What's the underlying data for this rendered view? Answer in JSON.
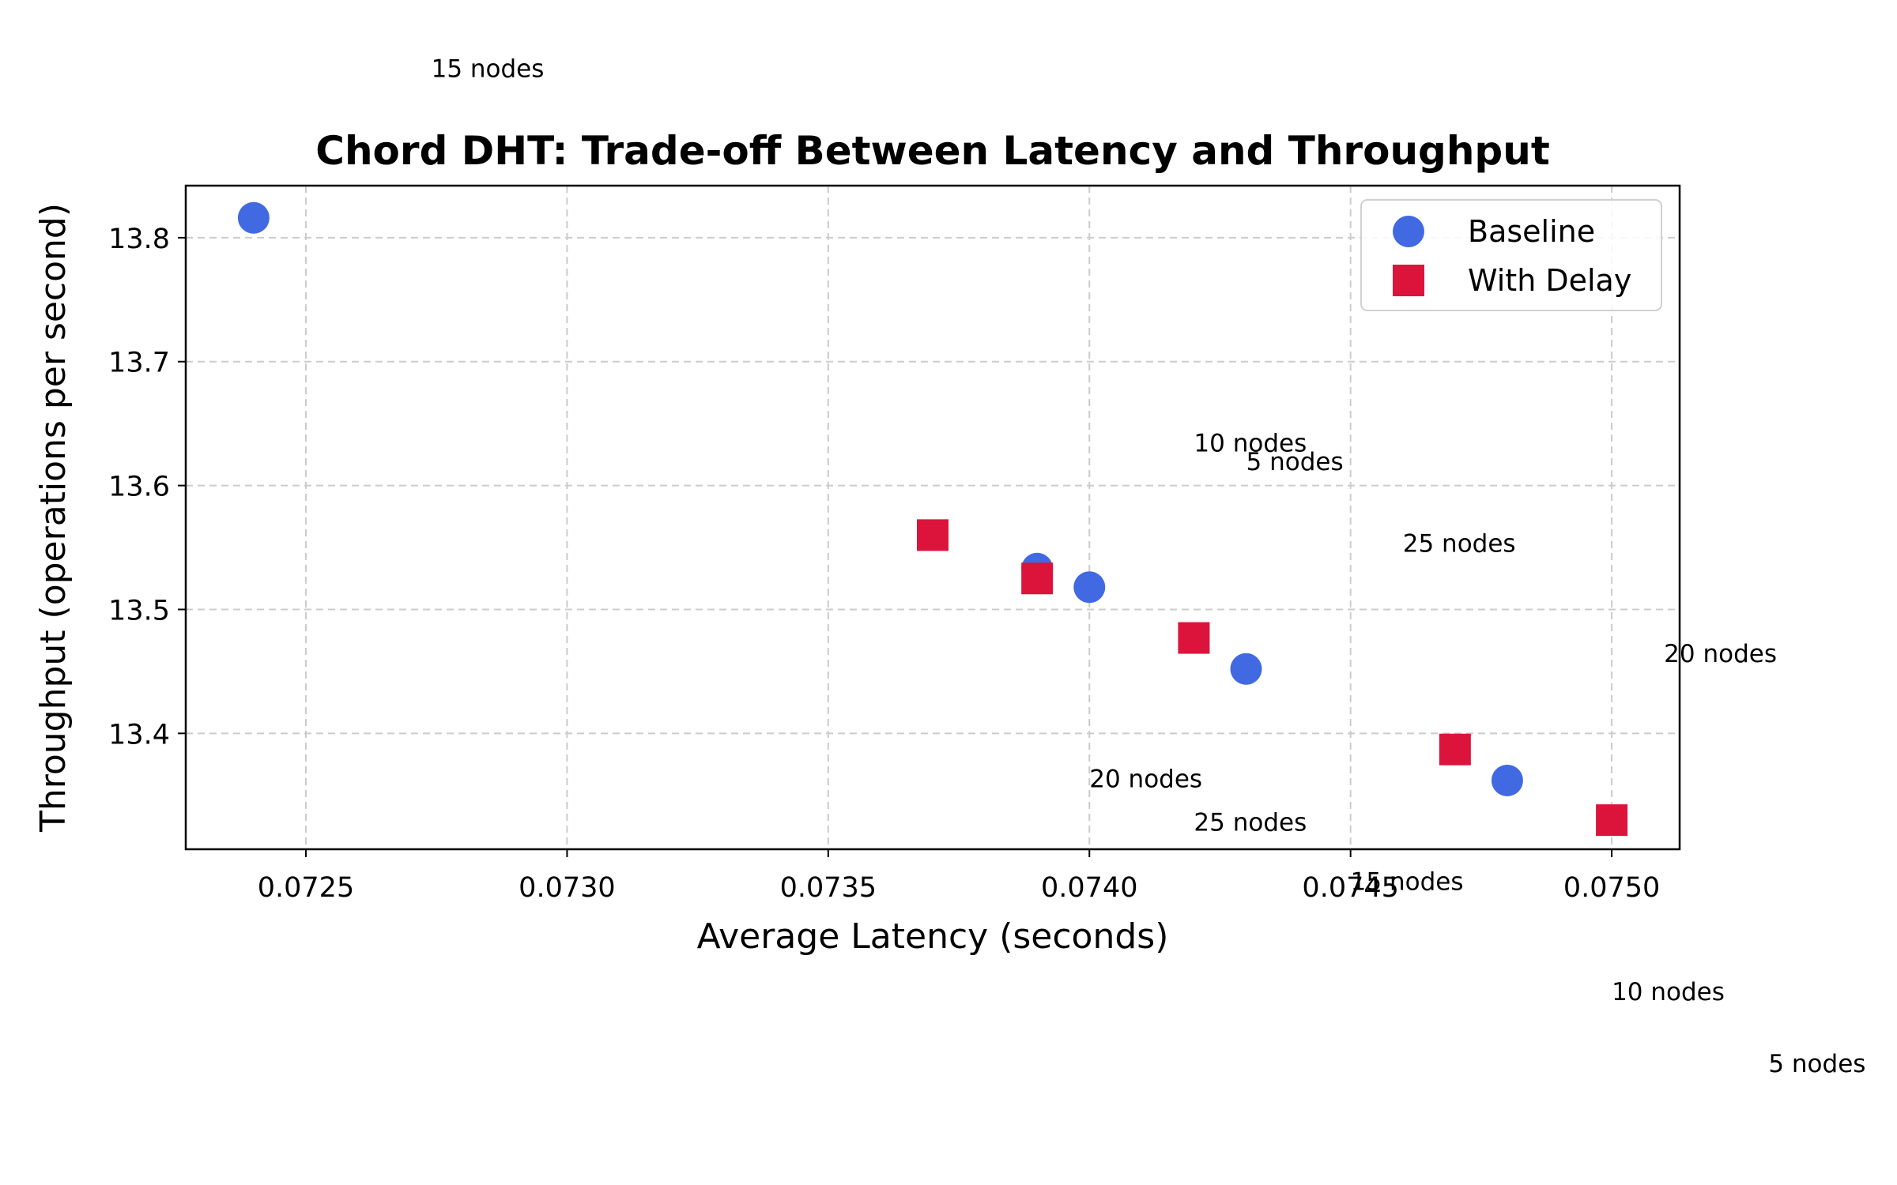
{
  "chart_data": {
    "type": "scatter",
    "title": "Chord DHT: Trade-off Between Latency and Throughput",
    "xlabel": "Average Latency (seconds)",
    "ylabel": "Throughput (operations per second)",
    "xlim": [
      0.07227,
      0.07513
    ],
    "ylim": [
      13.3065,
      13.842
    ],
    "xticks": [
      0.0725,
      0.073,
      0.0735,
      0.074,
      0.0745,
      0.075
    ],
    "xtick_labels": [
      "0.0725",
      "0.0730",
      "0.0735",
      "0.0740",
      "0.0745",
      "0.0750"
    ],
    "yticks": [
      13.4,
      13.5,
      13.6,
      13.7,
      13.8
    ],
    "ytick_labels": [
      "13.4",
      "13.5",
      "13.6",
      "13.7",
      "13.8"
    ],
    "grid": true,
    "legend_position": "upper right",
    "series": [
      {
        "name": "Baseline",
        "marker": "circle",
        "color": "#4169E1",
        "points": [
          {
            "x": 0.0724,
            "y": 13.816
          },
          {
            "x": 0.0739,
            "y": 13.533
          },
          {
            "x": 0.074,
            "y": 13.518
          },
          {
            "x": 0.0743,
            "y": 13.452
          },
          {
            "x": 0.0748,
            "y": 13.362
          }
        ]
      },
      {
        "name": "With Delay",
        "marker": "square",
        "color": "#DC143C",
        "points": [
          {
            "x": 0.0737,
            "y": 13.56
          },
          {
            "x": 0.0739,
            "y": 13.525
          },
          {
            "x": 0.0742,
            "y": 13.477
          },
          {
            "x": 0.0747,
            "y": 13.387
          },
          {
            "x": 0.075,
            "y": 13.33
          }
        ]
      }
    ],
    "annotations": [
      {
        "text": "15 nodes",
        "x": 0.07274,
        "y": 13.936
      },
      {
        "text": "10 nodes",
        "x": 0.0742,
        "y": 13.634
      },
      {
        "text": "5 nodes",
        "x": 0.0743,
        "y": 13.619
      },
      {
        "text": "25 nodes",
        "x": 0.0746,
        "y": 13.553
      },
      {
        "text": "20 nodes",
        "x": 0.0751,
        "y": 13.464
      },
      {
        "text": "20 nodes",
        "x": 0.074,
        "y": 13.363
      },
      {
        "text": "25 nodes",
        "x": 0.0742,
        "y": 13.328
      },
      {
        "text": "15 nodes",
        "x": 0.0745,
        "y": 13.28
      },
      {
        "text": "10 nodes",
        "x": 0.075,
        "y": 13.191
      },
      {
        "text": "5 nodes",
        "x": 0.0753,
        "y": 13.133
      }
    ]
  }
}
